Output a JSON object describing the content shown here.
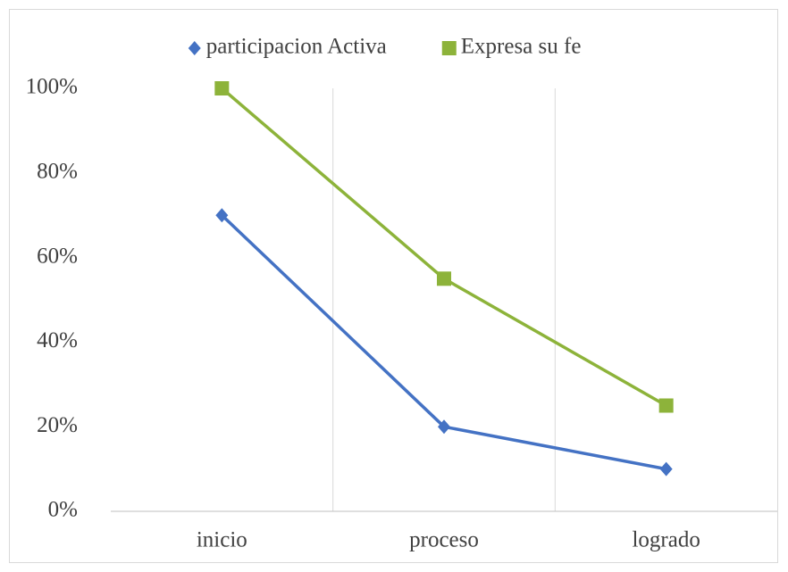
{
  "chart_data": {
    "type": "line",
    "categories": [
      "inicio",
      "proceso",
      "logrado"
    ],
    "series": [
      {
        "name": "participacion Activa",
        "color": "#4472c4",
        "marker": "diamond",
        "values": [
          70,
          20,
          10
        ]
      },
      {
        "name": "Expresa su fe",
        "color": "#8db33a",
        "marker": "square",
        "values": [
          100,
          55,
          25
        ]
      }
    ],
    "ylim": [
      0,
      100
    ],
    "yticks": [
      {
        "value": 0,
        "label": "0%"
      },
      {
        "value": 20,
        "label": "20%"
      },
      {
        "value": 40,
        "label": "40%"
      },
      {
        "value": 60,
        "label": "60%"
      },
      {
        "value": 80,
        "label": "80%"
      },
      {
        "value": 100,
        "label": "100%"
      }
    ],
    "legend": "top"
  }
}
